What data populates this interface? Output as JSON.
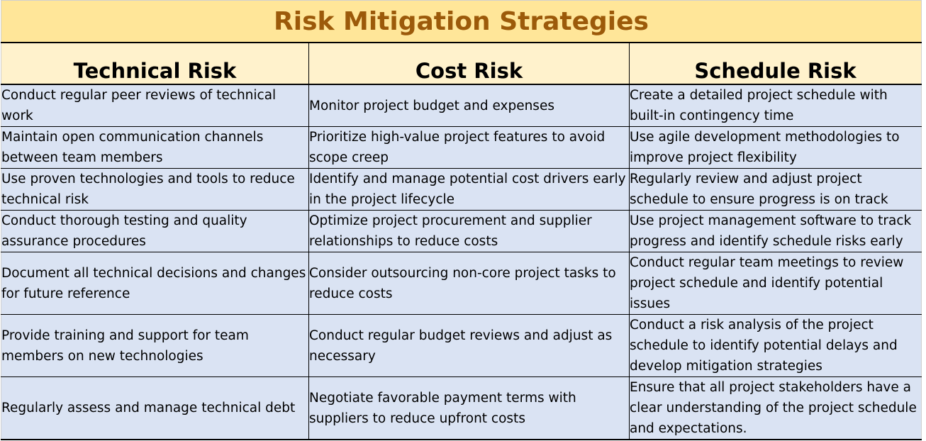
{
  "title": "Risk Mitigation Strategies",
  "colors": {
    "title_bg": "#ffe699",
    "title_text": "#9c5a0a",
    "header_bg": "#fff2cc",
    "body_bg": "#dae3f3"
  },
  "columns": [
    "Technical Risk",
    "Cost Risk",
    "Schedule Risk"
  ],
  "rows": [
    [
      "Conduct regular peer reviews of technical work",
      "Monitor project budget and expenses",
      "Create a detailed project schedule with built-in contingency time"
    ],
    [
      "Maintain open communication channels between team members",
      "Prioritize high-value project features to avoid scope creep",
      "Use agile development methodologies to improve project flexibility"
    ],
    [
      "Use proven technologies and tools to reduce technical risk",
      "Identify and manage potential cost drivers early in the project lifecycle",
      "Regularly review and adjust project schedule to ensure progress is on track"
    ],
    [
      "Conduct thorough testing and quality assurance procedures",
      "Optimize project procurement and supplier relationships to reduce costs",
      "Use project management software to track progress and identify schedule risks early"
    ],
    [
      "Document all technical decisions and changes for future reference",
      "Consider outsourcing non-core project tasks to reduce costs",
      "Conduct regular team meetings to review project schedule and identify potential issues"
    ],
    [
      "Provide training and support for team members on new technologies",
      "Conduct regular budget reviews and adjust as necessary",
      "Conduct a risk analysis of the project schedule to identify potential delays and develop mitigation strategies"
    ],
    [
      "Regularly assess and manage technical debt",
      "Negotiate favorable payment terms with suppliers to reduce upfront costs",
      "Ensure that all project stakeholders have a clear understanding of the project schedule and expectations."
    ]
  ]
}
